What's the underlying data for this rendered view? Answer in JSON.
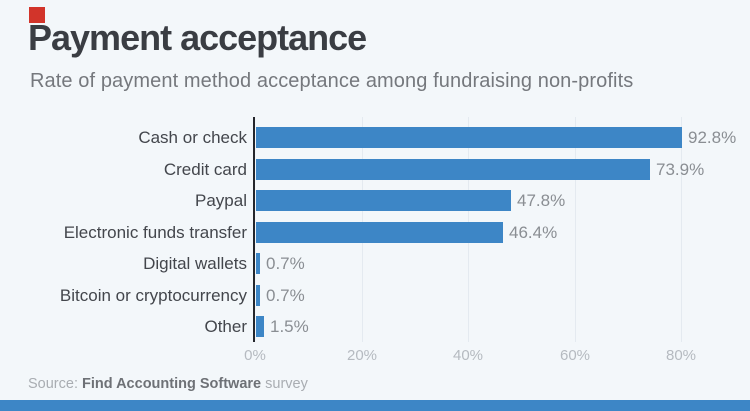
{
  "page": {
    "background": "#f3f7fa"
  },
  "brand": {
    "square_color": "#d2342a",
    "footer_color": "#3d86c6"
  },
  "header": {
    "title": "Payment acceptance",
    "subtitle": "Rate of payment method acceptance among fundraising non-profits"
  },
  "source": {
    "prefix": "Source: ",
    "name": "Find Accounting Software",
    "suffix": " survey"
  },
  "chart_data": {
    "type": "bar",
    "orientation": "horizontal",
    "title": "Payment acceptance",
    "subtitle": "Rate of payment method acceptance among fundraising non-profits",
    "categories": [
      "Cash or check",
      "Credit card",
      "Paypal",
      "Electronic funds transfer",
      "Digital wallets",
      "Bitcoin or cryptocurrency",
      "Other"
    ],
    "values": [
      92.8,
      73.9,
      47.8,
      46.4,
      0.7,
      0.7,
      1.5
    ],
    "value_labels": [
      "92.8%",
      "73.9%",
      "47.8%",
      "46.4%",
      "0.7%",
      "0.7%",
      "1.5%"
    ],
    "x_ticks": [
      {
        "value": 0,
        "label": "0%"
      },
      {
        "value": 20,
        "label": "20%"
      },
      {
        "value": 40,
        "label": "40%"
      },
      {
        "value": 60,
        "label": "60%"
      },
      {
        "value": 80,
        "label": "80%"
      }
    ],
    "xlim": [
      0,
      80
    ],
    "bar_color": "#3d86c6",
    "grid": true,
    "legend": false,
    "xlabel": "",
    "ylabel": ""
  }
}
